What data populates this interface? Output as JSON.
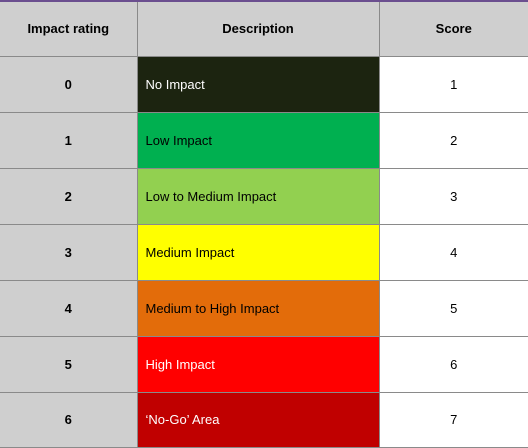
{
  "table": {
    "headers": {
      "rating": "Impact rating",
      "description": "Description",
      "score": "Score"
    },
    "rows": [
      {
        "rating": "0",
        "description": "No Impact",
        "score": "1",
        "color": "#1c2410",
        "text_color": "#ffffff"
      },
      {
        "rating": "1",
        "description": "Low Impact",
        "score": "2",
        "color": "#00b050",
        "text_color": "#000000"
      },
      {
        "rating": "2",
        "description": "Low to Medium Impact",
        "score": "3",
        "color": "#92d050",
        "text_color": "#000000"
      },
      {
        "rating": "3",
        "description": "Medium Impact",
        "score": "4",
        "color": "#ffff00",
        "text_color": "#000000"
      },
      {
        "rating": "4",
        "description": "Medium to High Impact",
        "score": "5",
        "color": "#e36c0a",
        "text_color": "#000000"
      },
      {
        "rating": "5",
        "description": "High Impact",
        "score": "6",
        "color": "#ff0000",
        "text_color": "#ffffff"
      },
      {
        "rating": "6",
        "description": "‘No-Go’ Area",
        "score": "7",
        "color": "#c00000",
        "text_color": "#ffffff"
      }
    ]
  }
}
